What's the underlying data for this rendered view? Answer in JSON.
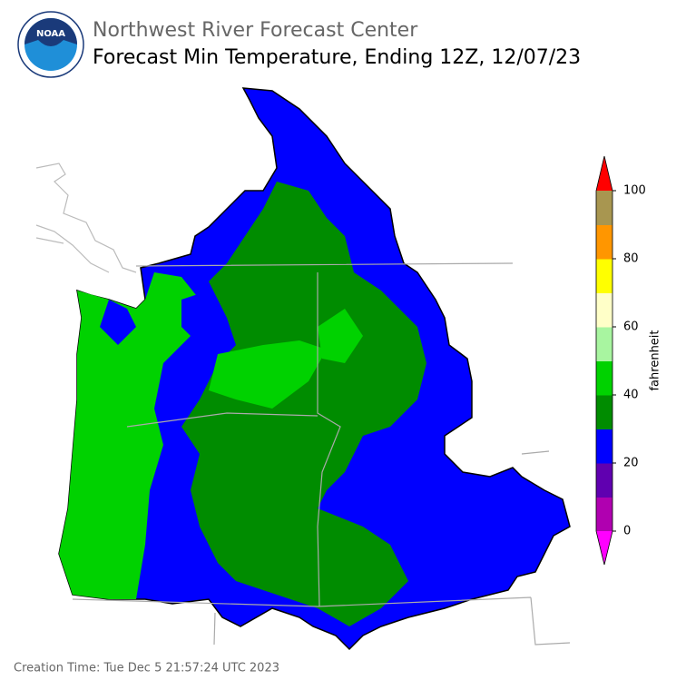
{
  "header": {
    "agency": "Northwest River Forecast Center",
    "title": "Forecast Min Temperature, Ending 12Z, 12/07/23"
  },
  "logo": {
    "text": "NOAA"
  },
  "colorbar": {
    "label": "fahrenheit",
    "ticks": [
      0,
      20,
      40,
      60,
      80,
      100
    ],
    "colors": [
      "#b000b0",
      "#6000b0",
      "#0000ff",
      "#008c00",
      "#00d200",
      "#a8f5a0",
      "#ffffc8",
      "#ffff00",
      "#ff9600",
      "#a89650"
    ],
    "under_color": "#ff00ff",
    "over_color": "#ff0000"
  },
  "footer": {
    "creation_time": "Creation Time: Tue Dec 5 21:57:24 UTC 2023"
  }
}
